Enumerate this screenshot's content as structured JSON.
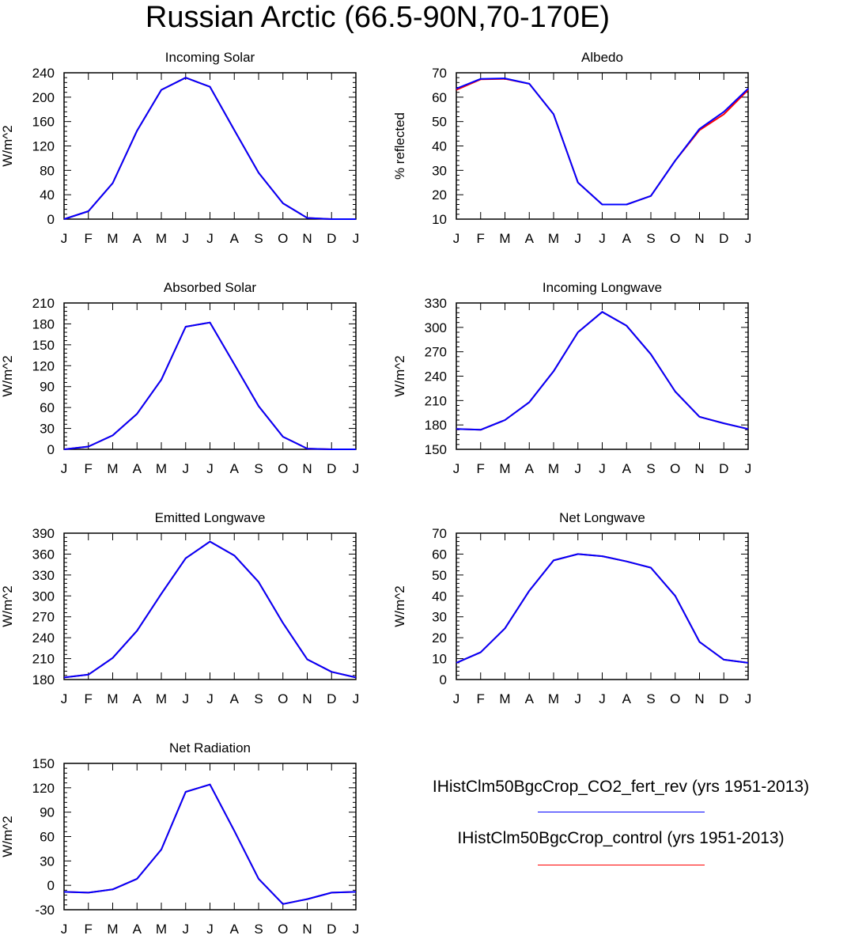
{
  "figure": {
    "title": "Russian Arctic (66.5-90N,70-170E)"
  },
  "legend": {
    "entries": [
      {
        "label": "IHistClm50BgcCrop_CO2_fert_rev (yrs 1951-2013)",
        "color": "#0000ff"
      },
      {
        "label": "IHistClm50BgcCrop_control (yrs 1951-2013)",
        "color": "#ff0000"
      }
    ]
  },
  "chart_data": [
    {
      "type": "line",
      "title": "Incoming Solar",
      "ylabel": "W/m^2",
      "xlabel": "",
      "x": [
        "J",
        "F",
        "M",
        "A",
        "M",
        "J",
        "J",
        "A",
        "S",
        "O",
        "N",
        "D",
        "J"
      ],
      "ylim": [
        0,
        240
      ],
      "yticks": [
        0,
        40,
        80,
        120,
        160,
        200,
        240
      ],
      "series": [
        {
          "name": "IHistClm50BgcCrop_control (yrs 1951-2013)",
          "color": "#ff0000",
          "values": [
            0,
            13,
            59,
            145,
            212,
            232,
            217,
            146,
            76,
            26,
            2,
            0,
            0
          ]
        },
        {
          "name": "IHistClm50BgcCrop_CO2_fert_rev (yrs 1951-2013)",
          "color": "#0000ff",
          "values": [
            0,
            13,
            59,
            145,
            212,
            232,
            217,
            146,
            76,
            26,
            2,
            0,
            0
          ]
        }
      ]
    },
    {
      "type": "line",
      "title": "Albedo",
      "ylabel": "% reflected",
      "xlabel": "",
      "x": [
        "J",
        "F",
        "M",
        "A",
        "M",
        "J",
        "J",
        "A",
        "S",
        "O",
        "N",
        "D",
        "J"
      ],
      "ylim": [
        10,
        70
      ],
      "yticks": [
        10,
        20,
        30,
        40,
        50,
        60,
        70
      ],
      "series": [
        {
          "name": "IHistClm50BgcCrop_control (yrs 1951-2013)",
          "color": "#ff0000",
          "values": [
            63,
            67.3,
            67.5,
            65.5,
            53,
            25,
            16,
            16,
            19.5,
            34,
            46.5,
            53,
            63
          ]
        },
        {
          "name": "IHistClm50BgcCrop_CO2_fert_rev (yrs 1951-2013)",
          "color": "#0000ff",
          "values": [
            63.5,
            67.5,
            67.7,
            65.5,
            53,
            25,
            16,
            16,
            19.5,
            34,
            47,
            54,
            63.5
          ]
        }
      ]
    },
    {
      "type": "line",
      "title": "Absorbed Solar",
      "ylabel": "W/m^2",
      "xlabel": "",
      "x": [
        "J",
        "F",
        "M",
        "A",
        "M",
        "J",
        "J",
        "A",
        "S",
        "O",
        "N",
        "D",
        "J"
      ],
      "ylim": [
        0,
        210
      ],
      "yticks": [
        0,
        30,
        60,
        90,
        120,
        150,
        180,
        210
      ],
      "series": [
        {
          "name": "IHistClm50BgcCrop_control (yrs 1951-2013)",
          "color": "#ff0000",
          "values": [
            0,
            4,
            20,
            51,
            100,
            176,
            182,
            122,
            62,
            18,
            1,
            0,
            0
          ]
        },
        {
          "name": "IHistClm50BgcCrop_CO2_fert_rev (yrs 1951-2013)",
          "color": "#0000ff",
          "values": [
            0,
            4,
            20,
            51,
            100,
            176,
            182,
            122,
            62,
            18,
            1,
            0,
            0
          ]
        }
      ]
    },
    {
      "type": "line",
      "title": "Incoming Longwave",
      "ylabel": "W/m^2",
      "xlabel": "",
      "x": [
        "J",
        "F",
        "M",
        "A",
        "M",
        "J",
        "J",
        "A",
        "S",
        "O",
        "N",
        "D",
        "J"
      ],
      "ylim": [
        150,
        330
      ],
      "yticks": [
        150,
        180,
        210,
        240,
        270,
        300,
        330
      ],
      "series": [
        {
          "name": "IHistClm50BgcCrop_control (yrs 1951-2013)",
          "color": "#ff0000",
          "values": [
            175,
            174,
            186,
            208,
            246,
            294,
            319,
            302,
            267,
            221,
            190,
            182,
            175
          ]
        },
        {
          "name": "IHistClm50BgcCrop_CO2_fert_rev (yrs 1951-2013)",
          "color": "#0000ff",
          "values": [
            175,
            174,
            186,
            208,
            246,
            294,
            319,
            302,
            267,
            221,
            190,
            182,
            175
          ]
        }
      ]
    },
    {
      "type": "line",
      "title": "Emitted Longwave",
      "ylabel": "W/m^2",
      "xlabel": "",
      "x": [
        "J",
        "F",
        "M",
        "A",
        "M",
        "J",
        "J",
        "A",
        "S",
        "O",
        "N",
        "D",
        "J"
      ],
      "ylim": [
        180,
        390
      ],
      "yticks": [
        180,
        210,
        240,
        270,
        300,
        330,
        360,
        390
      ],
      "series": [
        {
          "name": "IHistClm50BgcCrop_control (yrs 1951-2013)",
          "color": "#ff0000",
          "values": [
            183,
            187,
            211,
            250,
            303,
            354,
            378,
            358,
            320,
            261,
            209,
            191,
            183
          ]
        },
        {
          "name": "IHistClm50BgcCrop_CO2_fert_rev (yrs 1951-2013)",
          "color": "#0000ff",
          "values": [
            183,
            187,
            211,
            250,
            303,
            354,
            378,
            358,
            320,
            261,
            209,
            191,
            183
          ]
        }
      ]
    },
    {
      "type": "line",
      "title": "Net Longwave",
      "ylabel": "W/m^2",
      "xlabel": "",
      "x": [
        "J",
        "F",
        "M",
        "A",
        "M",
        "J",
        "J",
        "A",
        "S",
        "O",
        "N",
        "D",
        "J"
      ],
      "ylim": [
        0,
        70
      ],
      "yticks": [
        0,
        10,
        20,
        30,
        40,
        50,
        60,
        70
      ],
      "series": [
        {
          "name": "IHistClm50BgcCrop_control (yrs 1951-2013)",
          "color": "#ff0000",
          "values": [
            8,
            13,
            24.5,
            42.5,
            57,
            60,
            59,
            56.5,
            53.5,
            40,
            18,
            9.5,
            8
          ]
        },
        {
          "name": "IHistClm50BgcCrop_CO2_fert_rev (yrs 1951-2013)",
          "color": "#0000ff",
          "values": [
            8,
            13,
            24.5,
            42.5,
            57,
            60,
            59,
            56.5,
            53.5,
            40,
            18,
            9.5,
            8
          ]
        }
      ]
    },
    {
      "type": "line",
      "title": "Net Radiation",
      "ylabel": "W/m^2",
      "xlabel": "",
      "x": [
        "J",
        "F",
        "M",
        "A",
        "M",
        "J",
        "J",
        "A",
        "S",
        "O",
        "N",
        "D",
        "J"
      ],
      "ylim": [
        -30,
        150
      ],
      "yticks": [
        -30,
        0,
        30,
        60,
        90,
        120,
        150
      ],
      "series": [
        {
          "name": "IHistClm50BgcCrop_control (yrs 1951-2013)",
          "color": "#ff0000",
          "values": [
            -8,
            -9,
            -5,
            8,
            44,
            115,
            124,
            67,
            8,
            -23,
            -17,
            -9,
            -8
          ]
        },
        {
          "name": "IHistClm50BgcCrop_CO2_fert_rev (yrs 1951-2013)",
          "color": "#0000ff",
          "values": [
            -8,
            -9,
            -5,
            8,
            44,
            115,
            124,
            67,
            8,
            -23,
            -17,
            -9,
            -8
          ]
        }
      ]
    }
  ]
}
